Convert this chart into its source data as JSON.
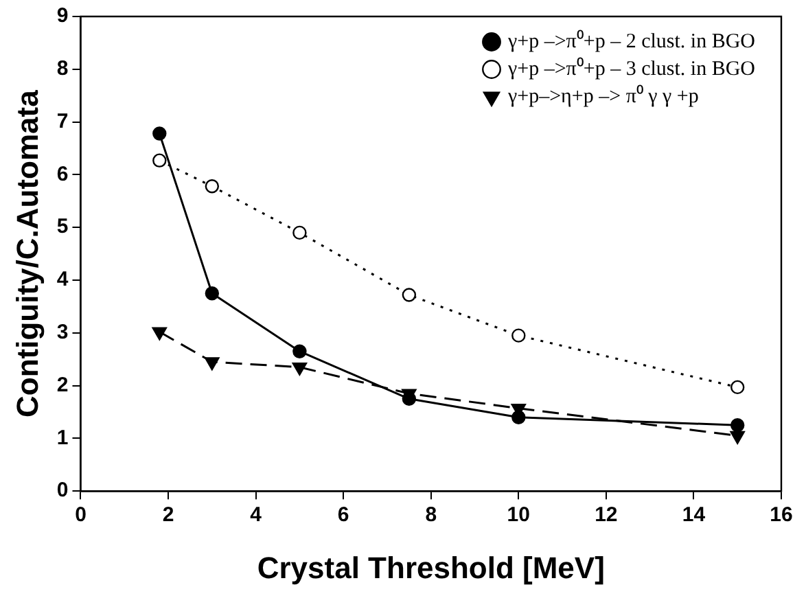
{
  "chart_data": {
    "type": "line",
    "xlabel": "Crystal Threshold [MeV]",
    "ylabel": "Contiguity/C.Automata",
    "xlim": [
      0,
      16
    ],
    "xticks": [
      0,
      2,
      4,
      6,
      8,
      10,
      12,
      14,
      16
    ],
    "ylim": [
      0,
      9
    ],
    "yticks": [
      0,
      1,
      2,
      3,
      4,
      5,
      6,
      7,
      8,
      9
    ],
    "grid": false,
    "legend": "top right",
    "x": [
      1.8,
      3,
      5,
      7.5,
      10,
      15
    ],
    "series": [
      {
        "name": "γ+p –>π⁰+p – 2 clust. in BGO",
        "color": "#000000",
        "marker": "circle",
        "line_style": "solid",
        "values": [
          6.78,
          3.75,
          2.65,
          1.75,
          1.4,
          1.25
        ]
      },
      {
        "name": "γ+p –>π⁰+p – 3 clust. in BGO",
        "color": "#000000",
        "marker": "circle",
        "line_style": "dotted",
        "values": [
          6.27,
          5.78,
          4.9,
          3.72,
          2.95,
          1.97
        ]
      },
      {
        "name": "γ+p–>η+p –> π⁰ γ γ +p",
        "color": "#000000",
        "marker": "triangle",
        "line_style": "dashed",
        "values": [
          3.02,
          2.45,
          2.35,
          1.85,
          1.57,
          1.05
        ]
      }
    ]
  }
}
